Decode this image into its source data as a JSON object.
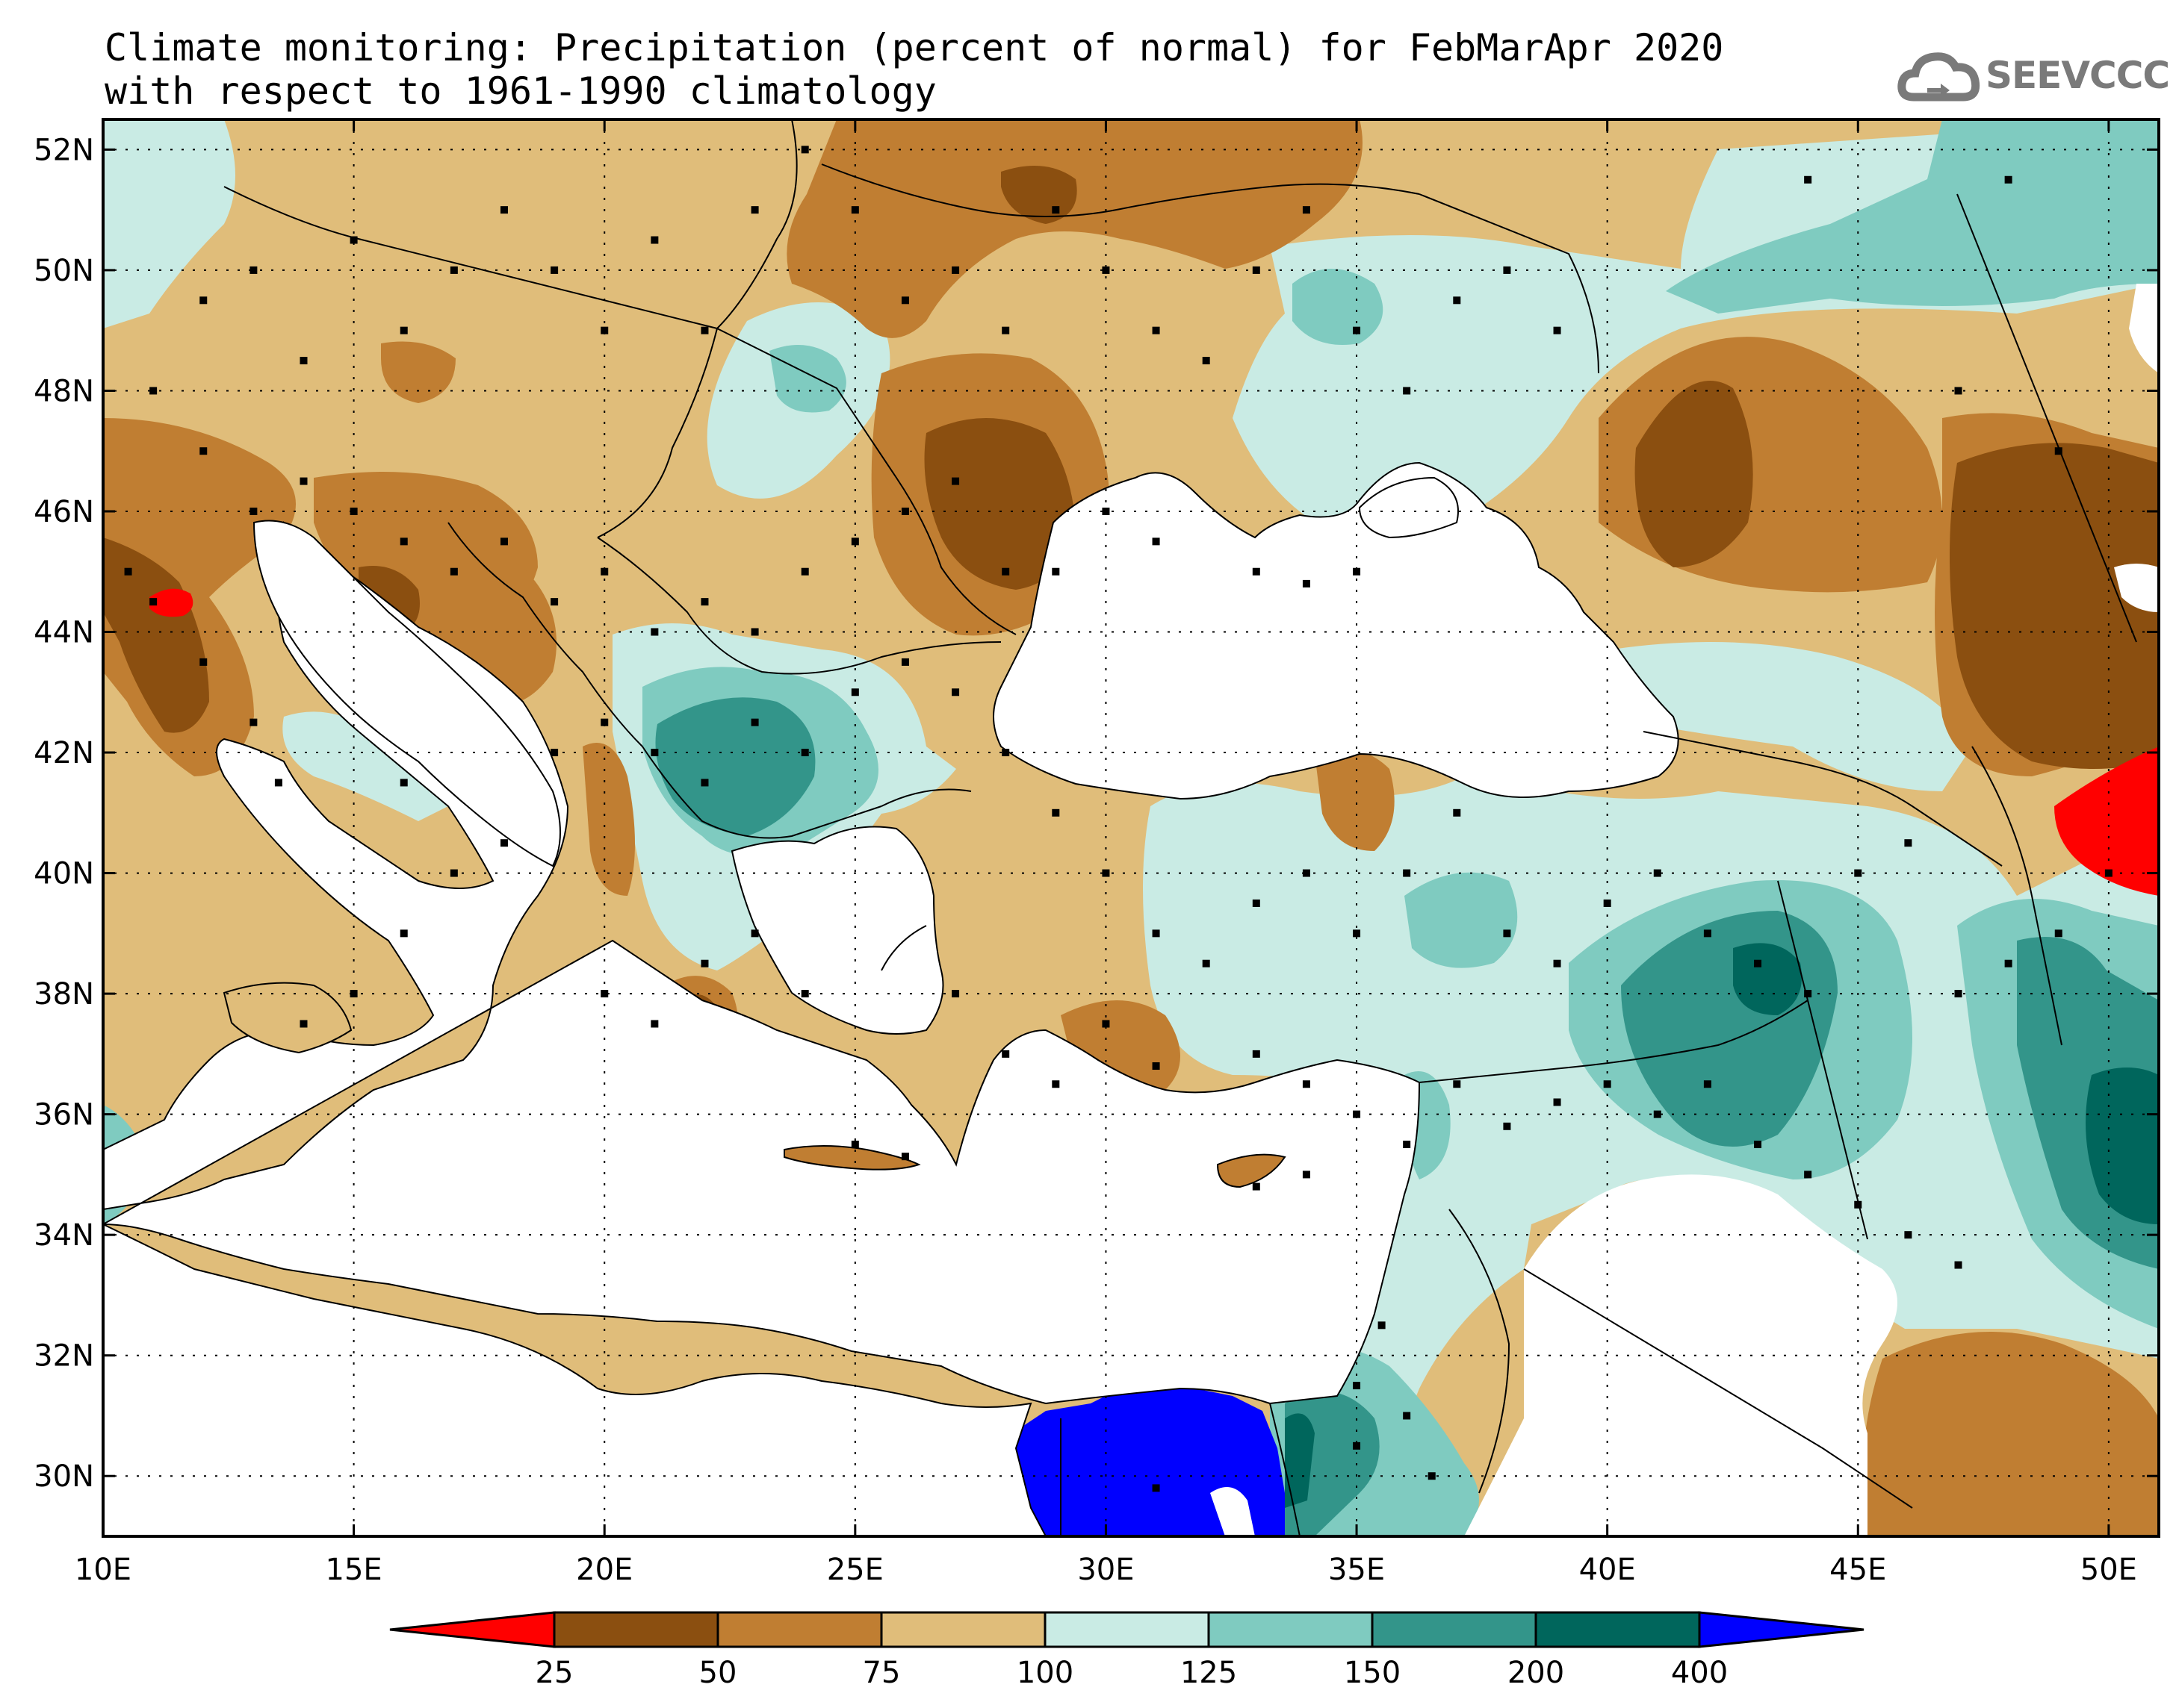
{
  "title": {
    "line1": "Climate monitoring: Precipitation (percent of normal) for FebMarApr 2020",
    "line2": "with respect to 1961-1990 climatology"
  },
  "logo": {
    "text": "SEEVCCC",
    "icon": "cloud-icon",
    "color": "#7a7a7a"
  },
  "map": {
    "lon_range": [
      10,
      51
    ],
    "lat_range": [
      29,
      52.5
    ],
    "lon_ticks": [
      "10E",
      "15E",
      "20E",
      "25E",
      "30E",
      "35E",
      "40E",
      "45E",
      "50E"
    ],
    "lat_ticks": [
      "30N",
      "32N",
      "34N",
      "36N",
      "38N",
      "40N",
      "42N",
      "44N",
      "46N",
      "48N",
      "50N",
      "52N"
    ]
  },
  "colorbar": {
    "labels": [
      "25",
      "50",
      "75",
      "100",
      "125",
      "150",
      "200",
      "400"
    ],
    "under_color": "#ff0000",
    "over_color": "#0000ff",
    "colors": [
      "#8b4f10",
      "#c07e32",
      "#e0bd7a",
      "#c9ebe4",
      "#7fcbc0",
      "#33958a",
      "#00665c"
    ]
  },
  "colors": {
    "c25_50": "#8b4f10",
    "c50_75": "#c07e32",
    "c75_100": "#e0bd7a",
    "c100_125": "#c9ebe4",
    "c125_150": "#7fcbc0",
    "c150_200": "#33958a",
    "c200_400": "#00665c",
    "under": "#ff0000",
    "over": "#0000ff"
  }
}
